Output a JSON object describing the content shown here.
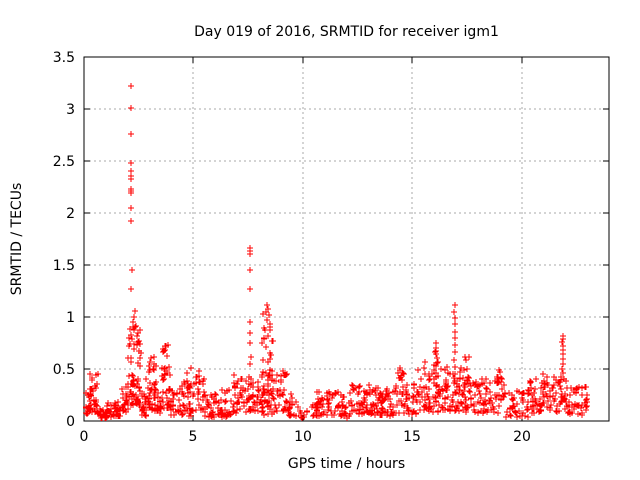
{
  "window": {
    "background": "#ffffff",
    "text_color": "#000000"
  },
  "chart_data": {
    "type": "scatter",
    "title": "Day 019 of 2016, SRMTID for receiver igm1",
    "xlabel": "GPS time / hours",
    "ylabel": "SRMTID / TECUs",
    "xlim": [
      0,
      24
    ],
    "ylim": [
      0,
      3.5
    ],
    "xticks": [
      0,
      5,
      10,
      15,
      20
    ],
    "yticks": [
      0,
      0.5,
      1,
      1.5,
      2,
      2.5,
      3,
      3.5
    ],
    "xtick_labels": [
      "0",
      "5",
      "10",
      "15",
      "20"
    ],
    "ytick_labels": [
      "0",
      "0.5",
      "1",
      "1.5",
      "2",
      "2.5",
      "3",
      "3.5"
    ],
    "grid": true,
    "grid_style": "dashed",
    "legend": "none",
    "series_name": "SRMTID",
    "marker": {
      "shape": "plus",
      "size": 7,
      "color": "#ff0000"
    },
    "frame_color": "#000000",
    "grid_color": "#a8a8a8",
    "feature_points": [
      [
        2.15,
        3.22
      ],
      [
        2.16,
        3.01
      ],
      [
        2.15,
        2.76
      ],
      [
        2.14,
        2.48
      ],
      [
        2.16,
        2.4
      ],
      [
        2.17,
        2.36
      ],
      [
        2.15,
        2.33
      ],
      [
        2.14,
        2.23
      ],
      [
        2.16,
        2.21
      ],
      [
        2.15,
        2.19
      ],
      [
        2.16,
        2.05
      ],
      [
        2.14,
        1.92
      ],
      [
        2.19,
        1.45
      ],
      [
        2.17,
        1.27
      ],
      [
        2.31,
        1.06
      ],
      [
        2.29,
        1.0
      ],
      [
        2.26,
        0.95
      ],
      [
        2.24,
        0.9
      ],
      [
        7.58,
        1.66
      ],
      [
        7.61,
        1.63
      ],
      [
        7.59,
        1.61
      ],
      [
        7.6,
        1.45
      ],
      [
        7.59,
        1.27
      ],
      [
        7.61,
        0.95
      ],
      [
        7.58,
        0.85
      ],
      [
        7.6,
        0.75
      ],
      [
        7.62,
        0.62
      ],
      [
        7.57,
        0.55
      ],
      [
        8.32,
        1.05
      ],
      [
        8.35,
        1.12
      ],
      [
        8.42,
        1.08
      ],
      [
        8.47,
        1.02
      ],
      [
        8.38,
        0.97
      ],
      [
        8.52,
        0.93
      ],
      [
        16.95,
        1.12
      ],
      [
        16.93,
        1.05
      ],
      [
        16.96,
        0.99
      ],
      [
        16.94,
        0.93
      ],
      [
        16.95,
        0.86
      ],
      [
        16.96,
        0.8
      ],
      [
        16.94,
        0.73
      ],
      [
        16.95,
        0.66
      ],
      [
        16.93,
        0.59
      ],
      [
        16.96,
        0.52
      ],
      [
        16.95,
        0.45
      ],
      [
        16.94,
        0.38
      ],
      [
        16.08,
        0.75
      ],
      [
        16.1,
        0.7
      ],
      [
        16.07,
        0.64
      ],
      [
        21.88,
        0.82
      ],
      [
        21.9,
        0.79
      ],
      [
        21.87,
        0.76
      ],
      [
        21.89,
        0.72
      ],
      [
        21.91,
        0.68
      ],
      [
        21.88,
        0.64
      ],
      [
        21.9,
        0.6
      ],
      [
        21.89,
        0.55
      ],
      [
        21.87,
        0.5
      ],
      [
        21.9,
        0.46
      ]
    ],
    "density_segments": [
      [
        0.05,
        0.3,
        15,
        0.05,
        0.27,
        1.4
      ],
      [
        0.28,
        0.62,
        30,
        0.08,
        0.46,
        1.3
      ],
      [
        0.62,
        1.05,
        22,
        0.03,
        0.13,
        1.3
      ],
      [
        1.05,
        1.75,
        40,
        0.04,
        0.18,
        1.4
      ],
      [
        1.75,
        2.05,
        18,
        0.08,
        0.35,
        1.3
      ],
      [
        2.0,
        2.6,
        70,
        0.15,
        0.92,
        1.6
      ],
      [
        2.6,
        2.85,
        18,
        0.05,
        0.28,
        1.4
      ],
      [
        2.82,
        3.3,
        42,
        0.1,
        0.62,
        1.4
      ],
      [
        3.3,
        3.55,
        14,
        0.08,
        0.3,
        1.4
      ],
      [
        3.55,
        3.95,
        38,
        0.12,
        0.74,
        1.5
      ],
      [
        3.95,
        4.3,
        20,
        0.05,
        0.3,
        1.4
      ],
      [
        4.3,
        5.0,
        35,
        0.05,
        0.36,
        1.5
      ],
      [
        4.55,
        4.9,
        10,
        0.3,
        0.52,
        1.2
      ],
      [
        5.0,
        5.5,
        25,
        0.08,
        0.48,
        1.4
      ],
      [
        5.5,
        6.8,
        60,
        0.04,
        0.3,
        1.5
      ],
      [
        6.8,
        7.45,
        35,
        0.08,
        0.44,
        1.3
      ],
      [
        7.45,
        7.75,
        25,
        0.1,
        0.55,
        1.2
      ],
      [
        7.75,
        8.1,
        18,
        0.08,
        0.4,
        1.4
      ],
      [
        8.1,
        8.7,
        45,
        0.25,
        1.05,
        1.4
      ],
      [
        8.1,
        8.7,
        25,
        0.05,
        0.3,
        1.3
      ],
      [
        8.7,
        9.3,
        30,
        0.08,
        0.48,
        1.5
      ],
      [
        9.3,
        9.8,
        18,
        0.04,
        0.26,
        1.4
      ],
      [
        9.8,
        10.4,
        9,
        0.02,
        0.1,
        1.2
      ],
      [
        10.4,
        11.9,
        75,
        0.05,
        0.28,
        1.4
      ],
      [
        11.9,
        12.1,
        7,
        0.03,
        0.14,
        1.3
      ],
      [
        12.1,
        13.2,
        60,
        0.06,
        0.35,
        1.5
      ],
      [
        13.2,
        14.2,
        55,
        0.05,
        0.32,
        1.5
      ],
      [
        14.2,
        14.7,
        28,
        0.08,
        0.52,
        1.5
      ],
      [
        14.7,
        15.2,
        25,
        0.06,
        0.36,
        1.4
      ],
      [
        15.2,
        15.6,
        22,
        0.1,
        0.58,
        1.4
      ],
      [
        15.6,
        16.3,
        42,
        0.08,
        0.46,
        1.4
      ],
      [
        16.0,
        16.2,
        12,
        0.35,
        0.74,
        1.2
      ],
      [
        16.3,
        17.4,
        70,
        0.1,
        0.52,
        1.3
      ],
      [
        17.4,
        17.65,
        10,
        0.28,
        0.62,
        1.2
      ],
      [
        17.4,
        18.3,
        45,
        0.08,
        0.4,
        1.4
      ],
      [
        18.3,
        19.2,
        40,
        0.07,
        0.42,
        1.5
      ],
      [
        18.85,
        19.05,
        8,
        0.32,
        0.62,
        1.2
      ],
      [
        19.2,
        20.3,
        45,
        0.04,
        0.3,
        1.5
      ],
      [
        20.3,
        21.65,
        70,
        0.08,
        0.45,
        1.4
      ],
      [
        21.65,
        22.1,
        25,
        0.1,
        0.45,
        1.3
      ],
      [
        22.1,
        23.0,
        45,
        0.06,
        0.33,
        1.4
      ]
    ]
  }
}
